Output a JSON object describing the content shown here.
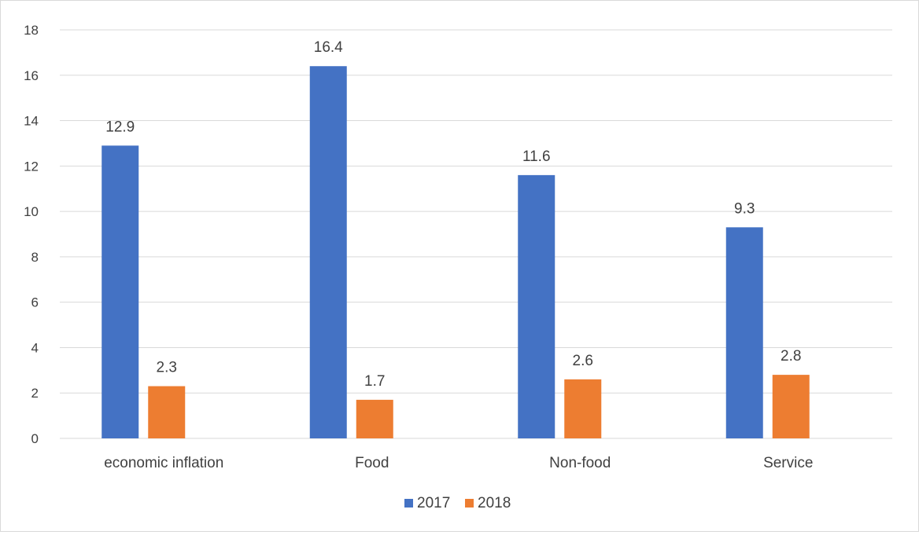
{
  "chart_data": {
    "type": "bar",
    "categories": [
      "economic inflation",
      "Food",
      "Non-food",
      "Service"
    ],
    "series": [
      {
        "name": "2017",
        "values": [
          12.9,
          16.4,
          11.6,
          9.3
        ],
        "color": "#4472C4"
      },
      {
        "name": "2018",
        "values": [
          2.3,
          1.7,
          2.6,
          2.8
        ],
        "color": "#ED7D31"
      }
    ],
    "ylim": [
      0,
      18
    ],
    "yticks": [
      0,
      2,
      4,
      6,
      8,
      10,
      12,
      14,
      16,
      18
    ],
    "grid": true,
    "data_labels": true,
    "legend_position": "bottom",
    "gridline_color": "#d9d9d9"
  }
}
